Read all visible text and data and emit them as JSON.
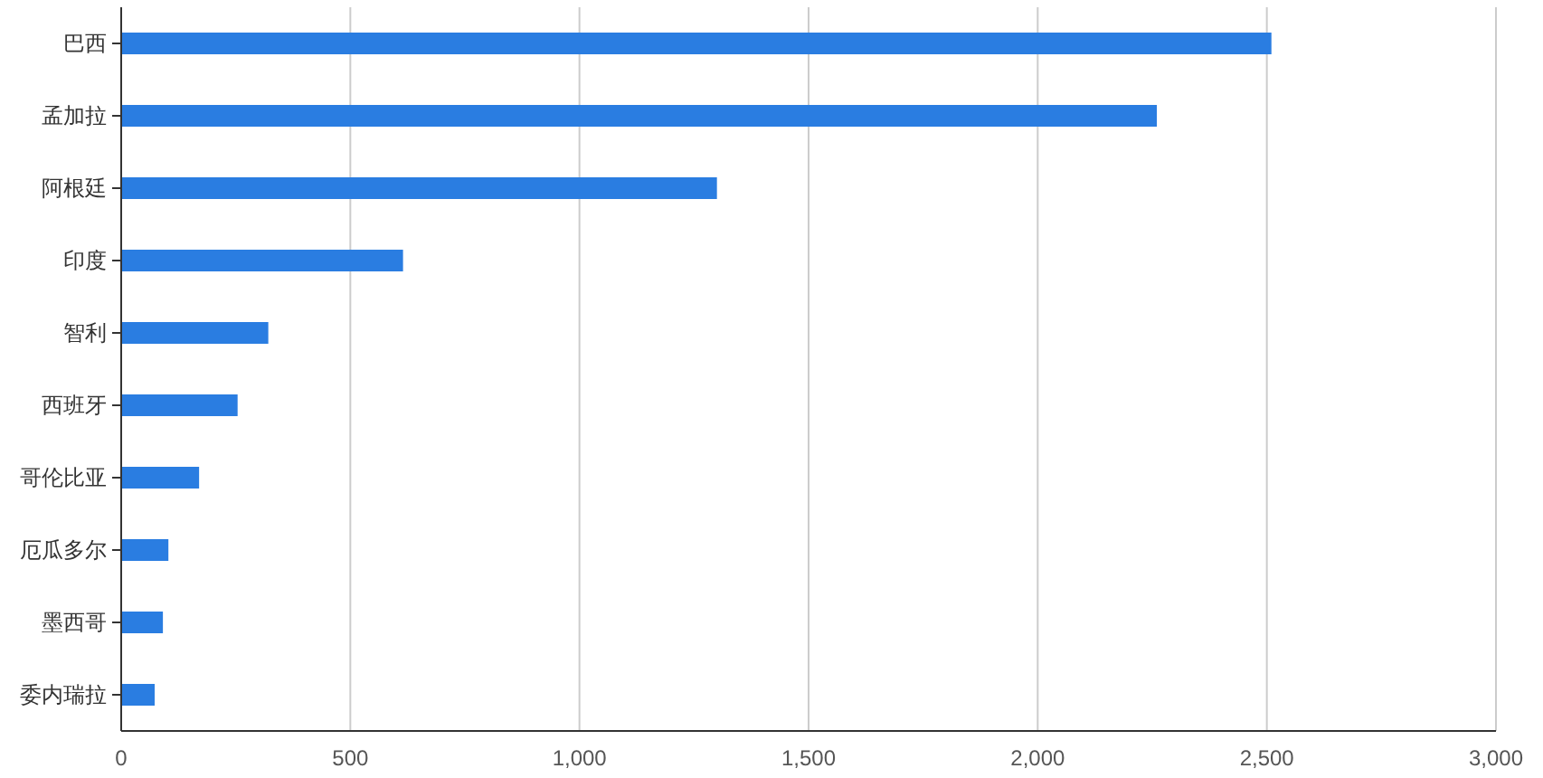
{
  "chart_data": {
    "type": "bar",
    "orientation": "horizontal",
    "categories": [
      "巴西",
      "孟加拉",
      "阿根廷",
      "印度",
      "智利",
      "西班牙",
      "哥伦比亚",
      "厄瓜多尔",
      "墨西哥",
      "委内瑞拉"
    ],
    "values": [
      2510,
      2260,
      1300,
      615,
      321,
      254,
      170,
      103,
      91,
      73
    ],
    "color": "#2a7de1",
    "xlim": [
      0,
      3000
    ],
    "xticks": [
      0,
      500,
      {
        "value": 1000,
        "label": "1,000"
      },
      {
        "value": 1500,
        "label": "1,500"
      },
      {
        "value": 2000,
        "label": "2,000"
      },
      {
        "value": 2500,
        "label": "2,500"
      },
      {
        "value": 3000,
        "label": "3,000"
      }
    ],
    "grid": "x"
  }
}
